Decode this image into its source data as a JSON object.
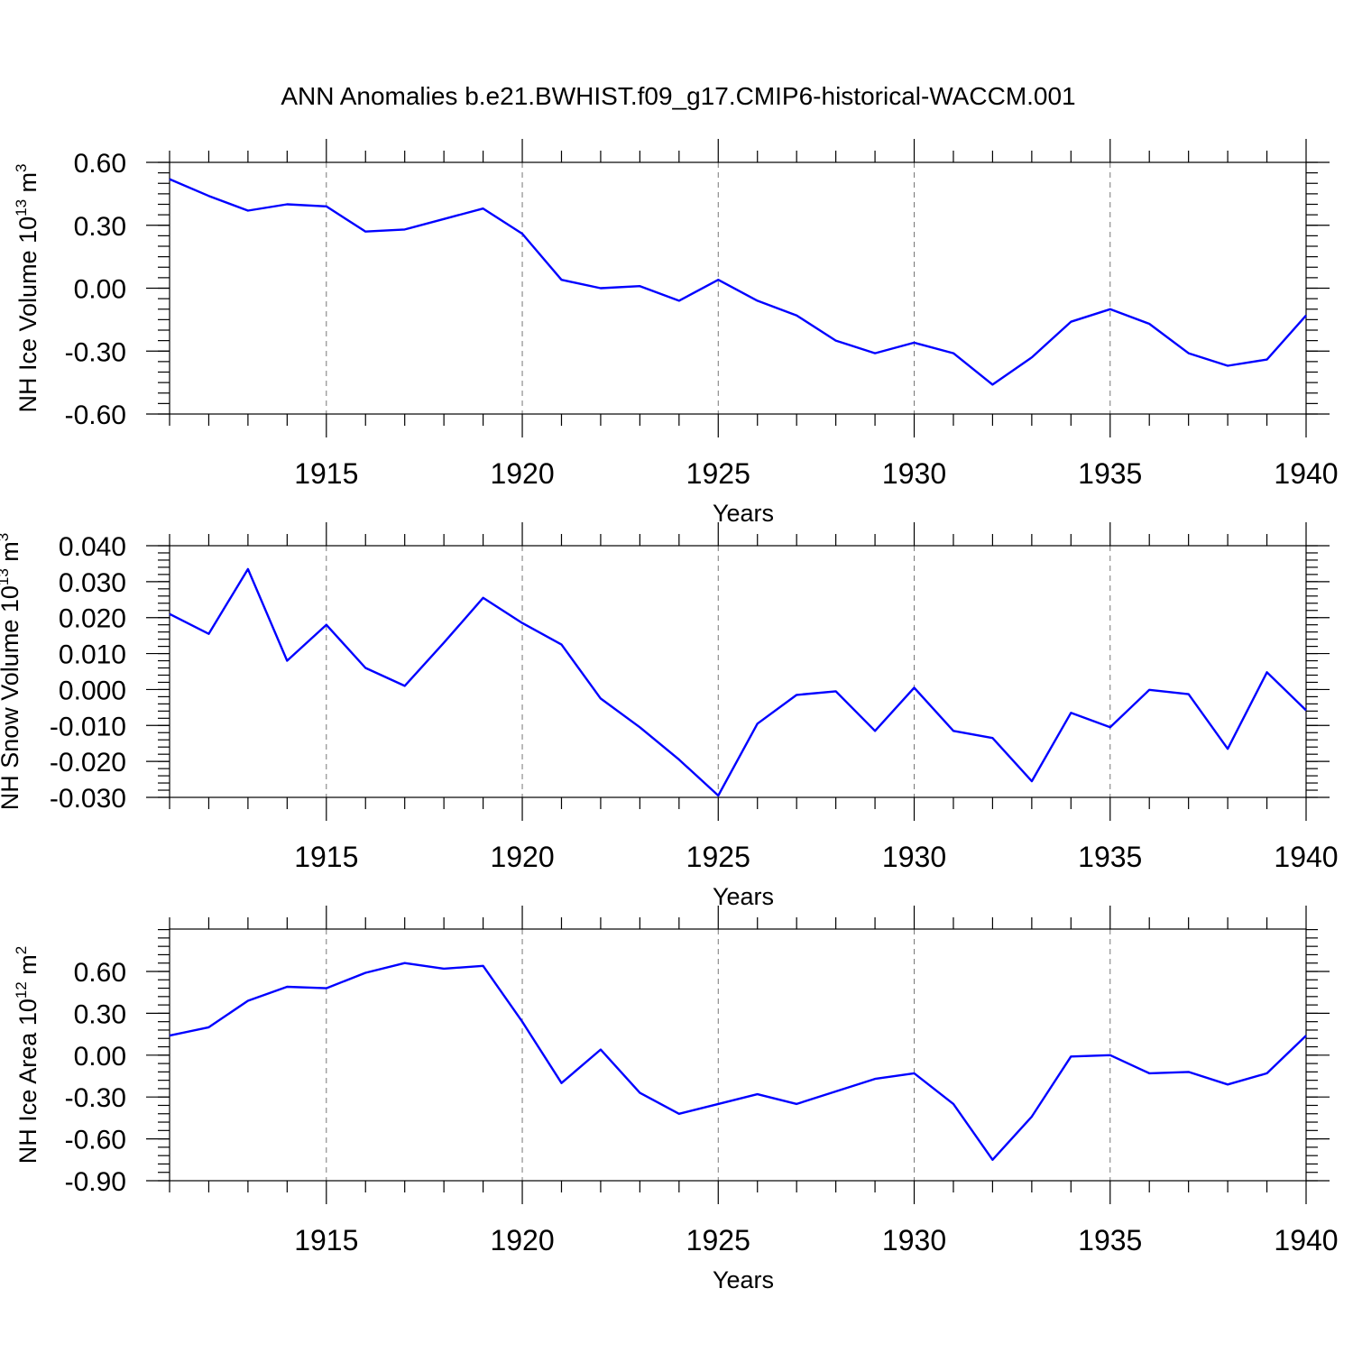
{
  "title": "ANN Anomalies b.e21.BWHIST.f09_g17.CMIP6-historical-WACCM.001",
  "line_color": "#0000ff",
  "chart_data": [
    {
      "type": "line",
      "ylabel": "NH Ice Volume 10",
      "ylabel_sup": "13",
      "ylabel_unit": "m",
      "ylabel_unit_sup": "3",
      "xlabel": "Years",
      "ylim": [
        -0.6,
        0.6
      ],
      "yticks": [
        0.6,
        0.3,
        0.0,
        -0.3,
        -0.6
      ],
      "ytick_labels": [
        "0.60",
        "0.30",
        "0.00",
        "-0.30",
        "-0.60"
      ],
      "xlim": [
        1911,
        1940
      ],
      "xticks": [
        1915,
        1920,
        1925,
        1930,
        1935,
        1940
      ],
      "xtick_labels": [
        "1915",
        "1920",
        "1925",
        "1930",
        "1935",
        "1940"
      ],
      "grid": "vertical dashed at major x ticks",
      "x": [
        1911,
        1912,
        1913,
        1914,
        1915,
        1916,
        1917,
        1918,
        1919,
        1920,
        1921,
        1922,
        1923,
        1924,
        1925,
        1926,
        1927,
        1928,
        1929,
        1930,
        1931,
        1932,
        1933,
        1934,
        1935,
        1936,
        1937,
        1938,
        1939,
        1940
      ],
      "values": [
        0.52,
        0.44,
        0.37,
        0.4,
        0.39,
        0.27,
        0.28,
        0.33,
        0.38,
        0.26,
        0.04,
        0.0,
        0.01,
        -0.06,
        0.04,
        -0.06,
        -0.13,
        -0.25,
        -0.31,
        -0.26,
        -0.31,
        -0.46,
        -0.33,
        -0.16,
        -0.1,
        -0.17,
        -0.31,
        -0.37,
        -0.34,
        -0.13
      ]
    },
    {
      "type": "line",
      "ylabel": "NH Snow Volume 10",
      "ylabel_sup": "13",
      "ylabel_unit": "m",
      "ylabel_unit_sup": "3",
      "xlabel": "Years",
      "ylim": [
        -0.03,
        0.04
      ],
      "yticks": [
        0.04,
        0.03,
        0.02,
        0.01,
        0.0,
        -0.01,
        -0.02,
        -0.03
      ],
      "ytick_labels": [
        "0.040",
        "0.030",
        "0.020",
        "0.010",
        "0.000",
        "-0.010",
        "-0.020",
        "-0.030"
      ],
      "xlim": [
        1911,
        1940
      ],
      "xticks": [
        1915,
        1920,
        1925,
        1930,
        1935,
        1940
      ],
      "xtick_labels": [
        "1915",
        "1920",
        "1925",
        "1930",
        "1935",
        "1940"
      ],
      "grid": "vertical dashed at major x ticks",
      "x": [
        1911,
        1912,
        1913,
        1914,
        1915,
        1916,
        1917,
        1918,
        1919,
        1920,
        1921,
        1922,
        1923,
        1924,
        1925,
        1926,
        1927,
        1928,
        1929,
        1930,
        1931,
        1932,
        1933,
        1934,
        1935,
        1936,
        1937,
        1938,
        1939,
        1940
      ],
      "values": [
        0.021,
        0.0155,
        0.0335,
        0.008,
        0.018,
        0.006,
        0.001,
        0.013,
        0.0255,
        0.0185,
        0.0125,
        -0.0025,
        -0.0105,
        -0.0195,
        -0.0295,
        -0.0095,
        -0.0015,
        -0.0005,
        -0.0115,
        0.0005,
        -0.0115,
        -0.0135,
        -0.0255,
        -0.0065,
        -0.0105,
        -0.0001,
        -0.0013,
        -0.0165,
        0.0048,
        -0.0058
      ]
    },
    {
      "type": "line",
      "ylabel": "NH Ice Area 10",
      "ylabel_sup": "12",
      "ylabel_unit": "m",
      "ylabel_unit_sup": "2",
      "xlabel": "Years",
      "ylim": [
        -0.9,
        0.9
      ],
      "yticks": [
        0.6,
        0.3,
        0.0,
        -0.3,
        -0.6,
        -0.9
      ],
      "ytick_labels": [
        "0.60",
        "0.30",
        "0.00",
        "-0.30",
        "-0.60",
        "-0.90"
      ],
      "xlim": [
        1911,
        1940
      ],
      "xticks": [
        1915,
        1920,
        1925,
        1930,
        1935,
        1940
      ],
      "xtick_labels": [
        "1915",
        "1920",
        "1925",
        "1930",
        "1935",
        "1940"
      ],
      "grid": "vertical dashed at major x ticks",
      "x": [
        1911,
        1912,
        1913,
        1914,
        1915,
        1916,
        1917,
        1918,
        1919,
        1920,
        1921,
        1922,
        1923,
        1924,
        1925,
        1926,
        1927,
        1928,
        1929,
        1930,
        1931,
        1932,
        1933,
        1934,
        1935,
        1936,
        1937,
        1938,
        1939,
        1940
      ],
      "values": [
        0.14,
        0.2,
        0.39,
        0.49,
        0.48,
        0.59,
        0.66,
        0.62,
        0.64,
        0.24,
        -0.2,
        0.04,
        -0.27,
        -0.42,
        -0.35,
        -0.28,
        -0.35,
        -0.26,
        -0.17,
        -0.13,
        -0.35,
        -0.75,
        -0.44,
        -0.01,
        0.0,
        -0.13,
        -0.12,
        -0.21,
        -0.13,
        0.14
      ]
    }
  ]
}
